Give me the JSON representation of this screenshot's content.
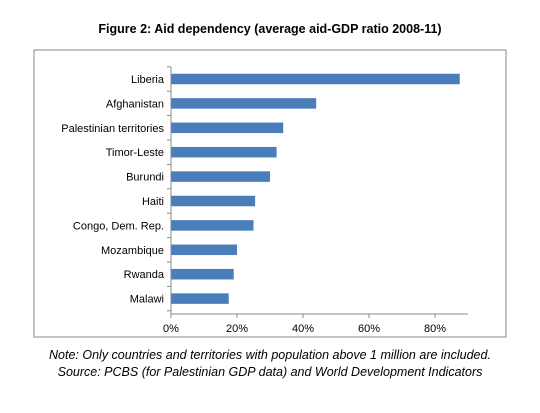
{
  "title": "Figure 2: Aid dependency (average aid-GDP ratio 2008-11)",
  "note": "Note: Only countries and territories with population above 1 million are included. Source: PCBS (for Palestinian GDP data) and World Development Indicators",
  "chart_data": {
    "type": "bar",
    "orientation": "horizontal",
    "title": "Figure 2: Aid dependency (average aid-GDP ratio 2008-11)",
    "categories": [
      "Liberia",
      "Afghanistan",
      "Palestinian territories",
      "Timor-Leste",
      "Burundi",
      "Haiti",
      "Congo, Dem. Rep.",
      "Mozambique",
      "Rwanda",
      "Malawi"
    ],
    "values": [
      87.5,
      44,
      34,
      32,
      30,
      25.5,
      25,
      20,
      19,
      17.5
    ],
    "xlim": [
      0,
      90
    ],
    "xticks": [
      0,
      20,
      40,
      60,
      80
    ],
    "xtick_labels": [
      "0%",
      "20%",
      "40%",
      "60%",
      "80%"
    ],
    "bar_color": "#4a7ebb",
    "grid": false,
    "legend": "none"
  }
}
